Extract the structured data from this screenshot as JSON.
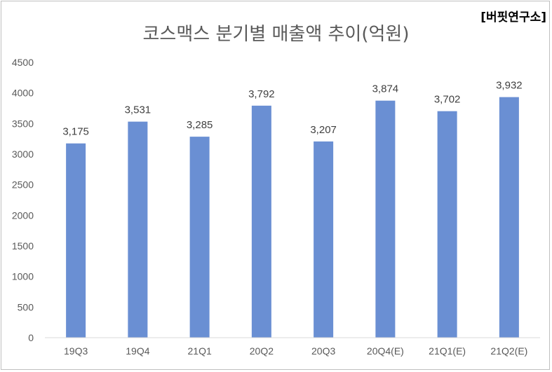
{
  "chart_data": {
    "type": "bar",
    "title": "코스맥스 분기별 매출액 추이(억원)",
    "source": "[버핏연구소]",
    "categories": [
      "19Q3",
      "19Q4",
      "21Q1",
      "20Q2",
      "20Q3",
      "20Q4(E)",
      "21Q1(E)",
      "21Q2(E)"
    ],
    "values": [
      3175,
      3531,
      3285,
      3792,
      3207,
      3874,
      3702,
      3932
    ],
    "data_labels": [
      "3,175",
      "3,531",
      "3,285",
      "3,792",
      "3,207",
      "3,874",
      "3,702",
      "3,932"
    ],
    "ylim": [
      0,
      4500
    ],
    "yticks": [
      0,
      500,
      1000,
      1500,
      2000,
      2500,
      3000,
      3500,
      4000,
      4500
    ],
    "xlabel": "",
    "ylabel": "",
    "legend": "none",
    "grid": false,
    "bar_color": "#6a8fd3"
  }
}
